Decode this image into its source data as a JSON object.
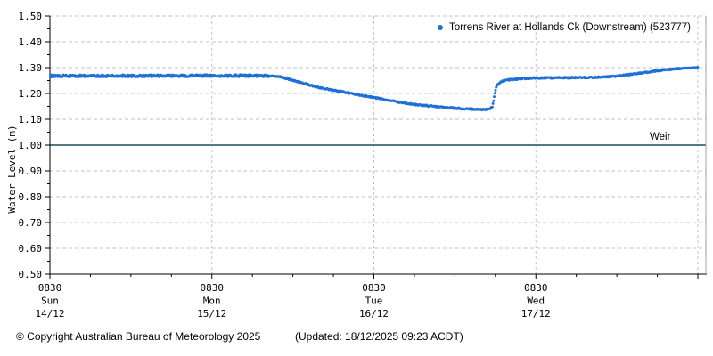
{
  "legend": {
    "marker": "dot",
    "marker_color": "#1e70d6",
    "label": "Torrens River at Hollands Ck (Downstream) (523777)"
  },
  "footer": {
    "copyright": "© Copyright Australian Bureau of Meteorology 2025",
    "updated": "(Updated: 18/12/2025 09:23 ACDT)"
  },
  "colors": {
    "series_blue": "#1e70d6",
    "weir_teal": "#4d7d7d",
    "grid": "#c3c3c3",
    "axis": "#000000",
    "plot_border_right": "#a0a0a0"
  },
  "chart_data": {
    "type": "scatter",
    "title": "",
    "xlabel": "",
    "ylabel": "Water Level (m)",
    "ylim": [
      0.5,
      1.5
    ],
    "grid": "dashed",
    "legend_position": "top-right",
    "y_ticks": [
      {
        "v": 1.5,
        "label": "1.50"
      },
      {
        "v": 1.4,
        "label": "1.40"
      },
      {
        "v": 1.3,
        "label": "1.30"
      },
      {
        "v": 1.2,
        "label": "1.20"
      },
      {
        "v": 1.1,
        "label": "1.10"
      },
      {
        "v": 1.0,
        "label": "1.00"
      },
      {
        "v": 0.9,
        "label": "0.90"
      },
      {
        "v": 0.8,
        "label": "0.80"
      },
      {
        "v": 0.7,
        "label": "0.70"
      },
      {
        "v": 0.6,
        "label": "0.60"
      },
      {
        "v": 0.5,
        "label": "0.50"
      }
    ],
    "y_minor_step": 0.05,
    "x_axis": {
      "unit": "days since 14/12 08:30",
      "range_days": [
        0,
        4.05
      ],
      "major_tick_every_days": 1,
      "minor_tick_every_days": 0.25,
      "tick_labels": [
        {
          "time": "0830",
          "day": "Sun",
          "date": "14/12"
        },
        {
          "time": "0830",
          "day": "Mon",
          "date": "15/12"
        },
        {
          "time": "0830",
          "day": "Tue",
          "date": "16/12"
        },
        {
          "time": "0830",
          "day": "Wed",
          "date": "17/12"
        }
      ]
    },
    "reference_line": {
      "value": 1.0,
      "label": "Weir",
      "color": "#4d7d7d"
    },
    "series": [
      {
        "name": "Torrens River at Hollands Ck (Downstream) (523777)",
        "color": "#1e70d6",
        "marker": "dot",
        "points": [
          [
            0.0,
            1.268
          ],
          [
            0.7,
            1.268
          ],
          [
            1.3,
            1.269
          ],
          [
            1.42,
            1.265
          ],
          [
            1.66,
            1.223
          ],
          [
            2.0,
            1.184
          ],
          [
            2.2,
            1.161
          ],
          [
            2.42,
            1.147
          ],
          [
            2.55,
            1.141
          ],
          [
            2.66,
            1.138
          ],
          [
            2.71,
            1.139
          ],
          [
            2.732,
            1.148
          ],
          [
            2.745,
            1.195
          ],
          [
            2.757,
            1.228
          ],
          [
            2.78,
            1.245
          ],
          [
            2.83,
            1.253
          ],
          [
            2.92,
            1.258
          ],
          [
            3.0,
            1.26
          ],
          [
            3.2,
            1.261
          ],
          [
            3.42,
            1.263
          ],
          [
            3.55,
            1.271
          ],
          [
            3.65,
            1.279
          ],
          [
            3.78,
            1.291
          ],
          [
            3.9,
            1.297
          ],
          [
            4.0,
            1.3
          ]
        ]
      }
    ]
  }
}
